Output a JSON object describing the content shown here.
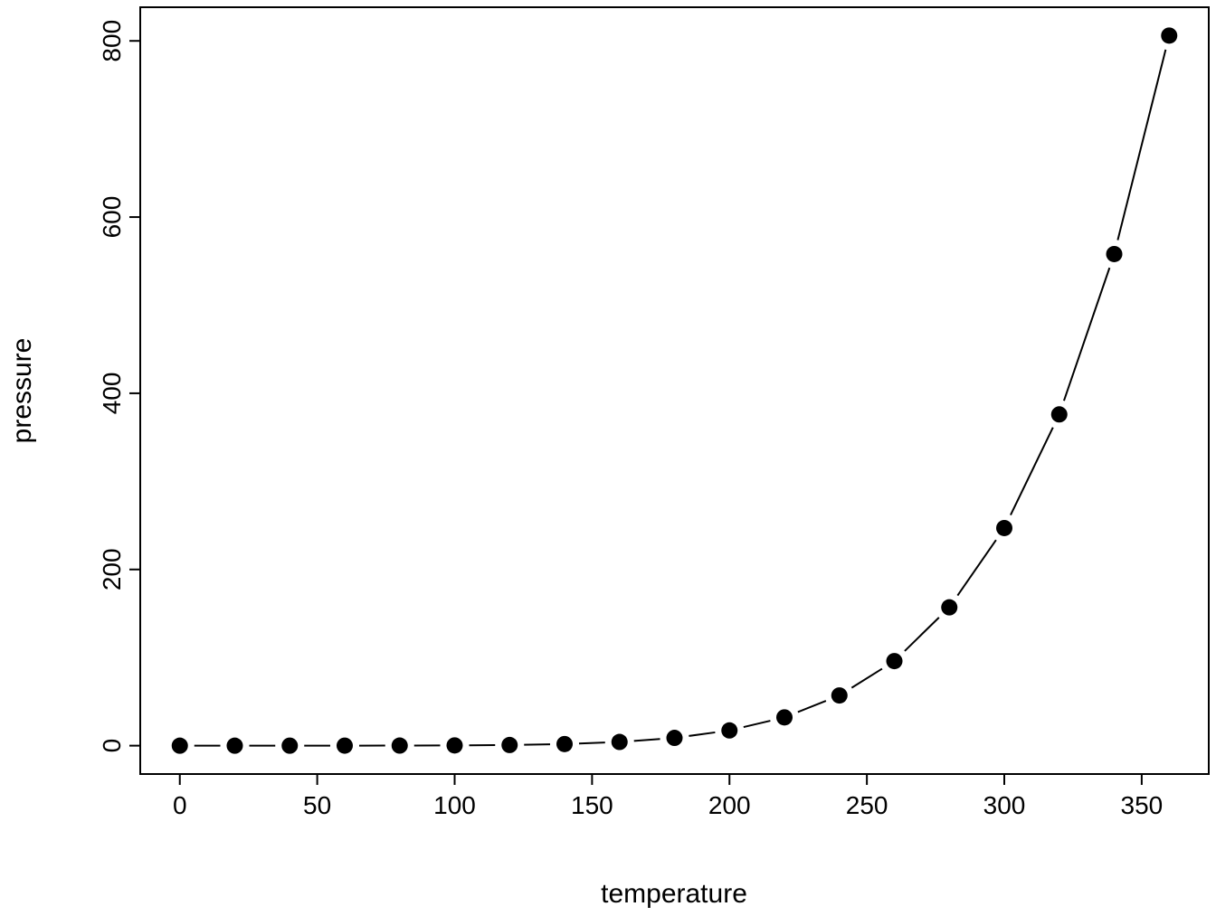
{
  "figure": {
    "background": "#ffffff",
    "foreground": "#000000"
  },
  "chart_data": {
    "type": "line",
    "title": "",
    "xlabel": "temperature",
    "ylabel": "pressure",
    "x": [
      0,
      20,
      40,
      60,
      80,
      100,
      120,
      140,
      160,
      180,
      200,
      220,
      240,
      260,
      280,
      300,
      320,
      340,
      360
    ],
    "y": [
      0.0002,
      0.0012,
      0.006,
      0.03,
      0.09,
      0.27,
      0.75,
      1.85,
      4.2,
      8.8,
      17.3,
      32.1,
      57.0,
      96.0,
      157.0,
      247.0,
      376.0,
      558.0,
      806.0
    ],
    "x_ticks": [
      0,
      50,
      100,
      150,
      200,
      250,
      300,
      350
    ],
    "y_ticks": [
      0,
      200,
      400,
      600,
      800
    ],
    "xlim": [
      -14.4,
      374.4
    ],
    "ylim": [
      -32.2,
      838.2
    ],
    "grid": false,
    "legend": "none",
    "marker": "filled-circle",
    "line_style": "segments-with-gaps-around-points",
    "color": "#000000"
  }
}
